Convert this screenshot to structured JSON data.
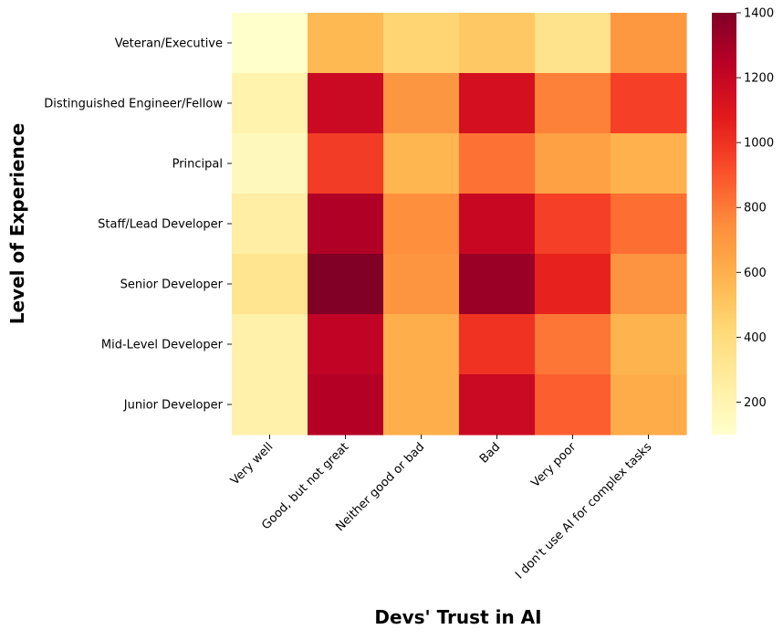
{
  "chart_data": {
    "type": "heatmap",
    "xlabel": "Devs' Trust in AI",
    "ylabel": "Level of Experience",
    "x_categories": [
      "Very well",
      "Good, but not great",
      "Neither good or bad",
      "Bad",
      "Very poor",
      "I don't use AI for complex tasks"
    ],
    "y_categories": [
      "Veteran/Executive",
      "Distinguished Engineer/Fellow",
      "Principal",
      "Staff/Lead Developer",
      "Senior Developer",
      "Mid-Level Developer",
      "Junior Developer"
    ],
    "values": [
      [
        100,
        560,
        440,
        490,
        340,
        700
      ],
      [
        210,
        1180,
        710,
        1140,
        780,
        960
      ],
      [
        160,
        970,
        570,
        820,
        660,
        590
      ],
      [
        250,
        1270,
        740,
        1190,
        960,
        830
      ],
      [
        330,
        1400,
        720,
        1330,
        1050,
        720
      ],
      [
        230,
        1220,
        600,
        1000,
        810,
        580
      ],
      [
        230,
        1260,
        600,
        1180,
        870,
        620
      ]
    ],
    "colorbar": {
      "colormap": "YlOrRd",
      "vmin": 100,
      "vmax": 1400,
      "ticks": [
        "200",
        "400",
        "600",
        "800",
        "1000",
        "1200",
        "1400"
      ]
    }
  }
}
